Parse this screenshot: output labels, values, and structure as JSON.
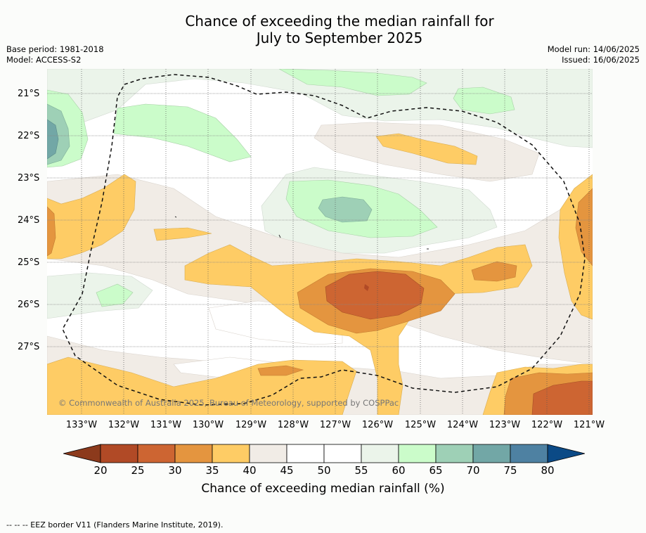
{
  "title_line1": "Chance of exceeding the median rainfall for",
  "title_line2": "July to September 2025",
  "meta": {
    "base_period": "Base period: 1981-2018",
    "model": "Model: ACCESS-S2",
    "model_run": "Model run: 14/06/2025",
    "issued": "Issued: 16/06/2025"
  },
  "lat_labels": [
    "21°S",
    "22°S",
    "23°S",
    "24°S",
    "25°S",
    "26°S",
    "27°S"
  ],
  "lon_labels": [
    "133°W",
    "132°W",
    "131°W",
    "130°W",
    "129°W",
    "128°W",
    "127°W",
    "126°W",
    "125°W",
    "124°W",
    "123°W",
    "122°W",
    "121°W"
  ],
  "copyright": "© Commonwealth of Australia 2025, Bureau of Meteorology, supported by COSPPac",
  "colorbar": {
    "ticks": [
      "20",
      "25",
      "30",
      "35",
      "40",
      "45",
      "50",
      "55",
      "60",
      "65",
      "70",
      "75",
      "80"
    ],
    "label": "Chance of exceeding median rainfall (%)",
    "under_color": "#8c3a1c",
    "over_color": "#0b4a86",
    "colors": [
      "#b14a26",
      "#cd6532",
      "#e4953f",
      "#fecc65",
      "#f1ece6",
      "#ffffff",
      "#ffffff",
      "#ebf4ea",
      "#cbfcca",
      "#9ed0b6",
      "#72a7a6",
      "#4e81a2"
    ]
  },
  "footer": "--  --  -- EEZ border V11 (Flanders Marine Institute, 2019)."
}
